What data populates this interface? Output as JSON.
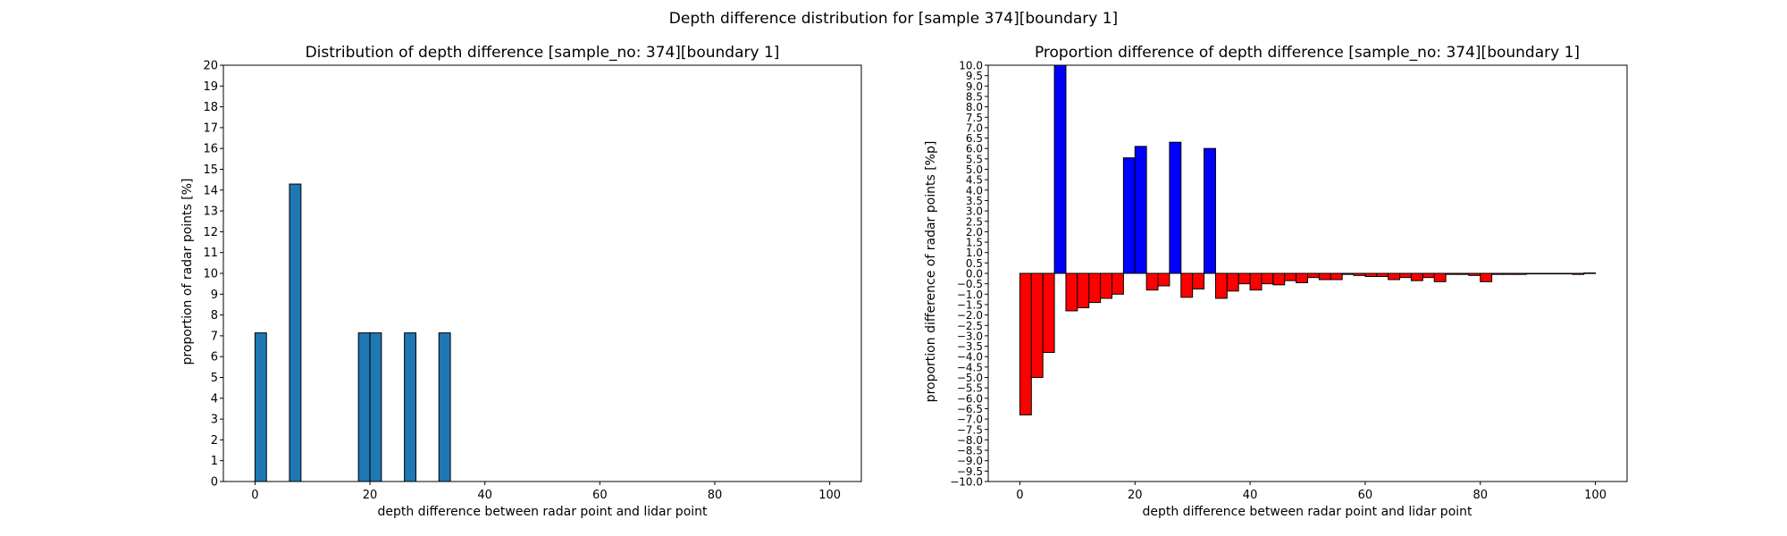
{
  "figure": {
    "suptitle": "Depth difference distribution for [sample 374][boundary 1]"
  },
  "chart_data": [
    {
      "type": "bar",
      "title": "Distribution of depth difference [sample_no: 374][boundary 1]",
      "xlabel": "depth difference between radar point and lidar point",
      "ylabel": "proportion of radar points [%]",
      "xlim": [
        -5.5,
        105.5
      ],
      "ylim": [
        0,
        20
      ],
      "xticks": [
        0,
        20,
        40,
        60,
        80,
        100
      ],
      "yticks": [
        0,
        1,
        2,
        3,
        4,
        5,
        6,
        7,
        8,
        9,
        10,
        11,
        12,
        13,
        14,
        15,
        16,
        17,
        18,
        19,
        20
      ],
      "bar_width": 2,
      "bar_color": "#1f77b4",
      "edge_color": "#000000",
      "x": [
        1,
        7,
        19,
        21,
        27,
        33
      ],
      "values": [
        7.14,
        14.29,
        7.14,
        7.14,
        7.14,
        7.14
      ]
    },
    {
      "type": "bar",
      "title": "Proportion difference of depth difference [sample_no: 374][boundary 1]",
      "xlabel": "depth difference between radar point and lidar point",
      "ylabel": "proportion difference of radar points [%p]",
      "xlim": [
        -5.5,
        105.5
      ],
      "ylim": [
        -10,
        10
      ],
      "xticks": [
        0,
        20,
        40,
        60,
        80,
        100
      ],
      "yticks": [
        "-10.0",
        "-9.5",
        "-9.0",
        "-8.5",
        "-8.0",
        "-7.5",
        "-7.0",
        "-6.5",
        "-6.0",
        "-5.5",
        "-5.0",
        "-4.5",
        "-4.0",
        "-3.5",
        "-3.0",
        "-2.5",
        "-2.0",
        "-1.5",
        "-1.0",
        "-0.5",
        "0.0",
        "0.5",
        "1.0",
        "1.5",
        "2.0",
        "2.5",
        "3.0",
        "3.5",
        "4.0",
        "4.5",
        "5.0",
        "5.5",
        "6.0",
        "6.5",
        "7.0",
        "7.5",
        "8.0",
        "8.5",
        "9.0",
        "9.5",
        "10.0"
      ],
      "bar_width": 2,
      "positive_color": "#0000ff",
      "negative_color": "#ff0000",
      "edge_color": "#000000",
      "x": [
        1,
        3,
        5,
        7,
        9,
        11,
        13,
        15,
        17,
        19,
        21,
        23,
        25,
        27,
        29,
        31,
        33,
        35,
        37,
        39,
        41,
        43,
        45,
        47,
        49,
        51,
        53,
        55,
        57,
        59,
        61,
        63,
        65,
        67,
        69,
        71,
        73,
        75,
        77,
        79,
        81,
        83,
        85,
        87,
        89,
        91,
        93,
        95,
        97,
        99
      ],
      "values": [
        -6.8,
        -5.0,
        -3.8,
        10.2,
        -1.8,
        -1.65,
        -1.4,
        -1.2,
        -1.0,
        5.55,
        6.1,
        -0.8,
        -0.6,
        6.3,
        -1.15,
        -0.75,
        6.0,
        -1.2,
        -0.85,
        -0.5,
        -0.8,
        -0.5,
        -0.55,
        -0.35,
        -0.45,
        -0.2,
        -0.3,
        -0.3,
        -0.05,
        -0.1,
        -0.15,
        -0.15,
        -0.3,
        -0.2,
        -0.35,
        -0.2,
        -0.4,
        -0.05,
        -0.05,
        -0.1,
        -0.4,
        -0.05,
        -0.05,
        -0.05,
        -0.02,
        -0.02,
        -0.02,
        -0.02,
        -0.05,
        0.02
      ]
    }
  ]
}
